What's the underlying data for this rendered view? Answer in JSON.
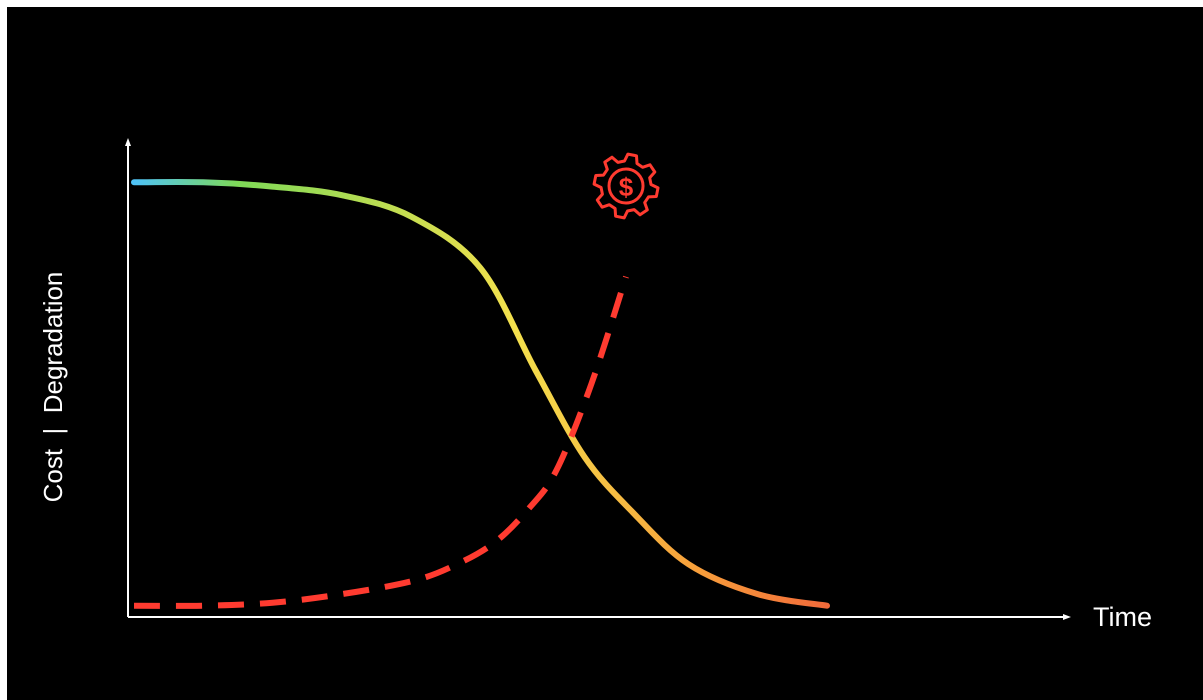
{
  "chart_data": {
    "type": "line",
    "xlabel": "Time",
    "ylabel": "Cost  |  Degradation",
    "xlim": [
      0,
      10
    ],
    "ylim": [
      0,
      100
    ],
    "grid": false,
    "legend": "none",
    "series": [
      {
        "style": "solid-gradient",
        "colors": [
          "#4fc3f7",
          "#7ed957",
          "#f4e04d",
          "#f7a23b",
          "#f26a3a"
        ],
        "x": [
          0,
          1,
          2,
          3,
          4,
          5,
          5.8,
          6.5,
          7.2,
          8,
          9,
          10
        ],
        "y": [
          99,
          99,
          98,
          96,
          91,
          79,
          55,
          35,
          22,
          10,
          3,
          0.3
        ]
      },
      {
        "style": "dashed",
        "color": "#ff3b30",
        "x": [
          0,
          1,
          2,
          3,
          4,
          4.6,
          5.2,
          5.7,
          6.1,
          6.6,
          7.1
        ],
        "y": [
          0.3,
          0.3,
          1,
          3,
          6,
          9.5,
          15,
          23,
          32,
          52,
          77
        ]
      }
    ],
    "annotation": {
      "icon": "dollar-gear-icon",
      "color": "#ff3b30",
      "anchor_x": 7.1
    }
  }
}
